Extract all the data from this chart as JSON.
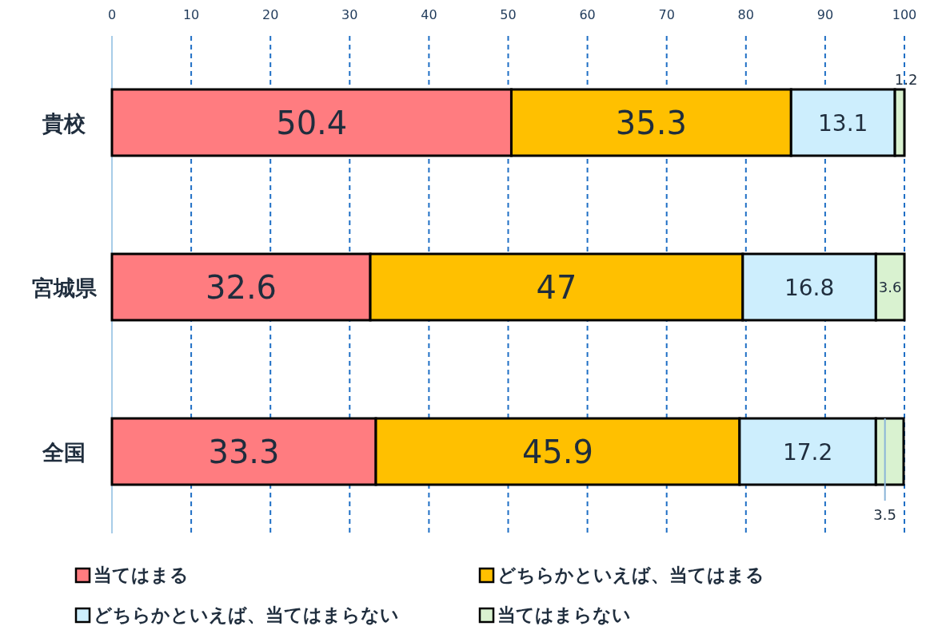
{
  "chart_data": {
    "type": "bar",
    "orientation": "horizontal",
    "stacked": true,
    "data_labels": true,
    "grid": "x",
    "legend": "bottom",
    "categories": [
      "貴校",
      "宮城県",
      "全国"
    ],
    "series": [
      {
        "name": "当てはまる",
        "color": "#ff7c80",
        "values": [
          50.4,
          32.6,
          33.3
        ]
      },
      {
        "name": "どちらかといえば、当てはまる",
        "color": "#ffc000",
        "values": [
          35.3,
          47,
          45.9
        ]
      },
      {
        "name": "どちらかといえば、当てはまらない",
        "color": "#cdeefd",
        "values": [
          13.1,
          16.8,
          17.2
        ]
      },
      {
        "name": "当てはまらない",
        "color": "#d9f2d0",
        "values": [
          1.2,
          3.6,
          3.5
        ]
      }
    ],
    "xlim": [
      0,
      100
    ],
    "xticks": [
      0,
      10,
      20,
      30,
      40,
      50,
      60,
      70,
      80,
      90,
      100
    ]
  }
}
